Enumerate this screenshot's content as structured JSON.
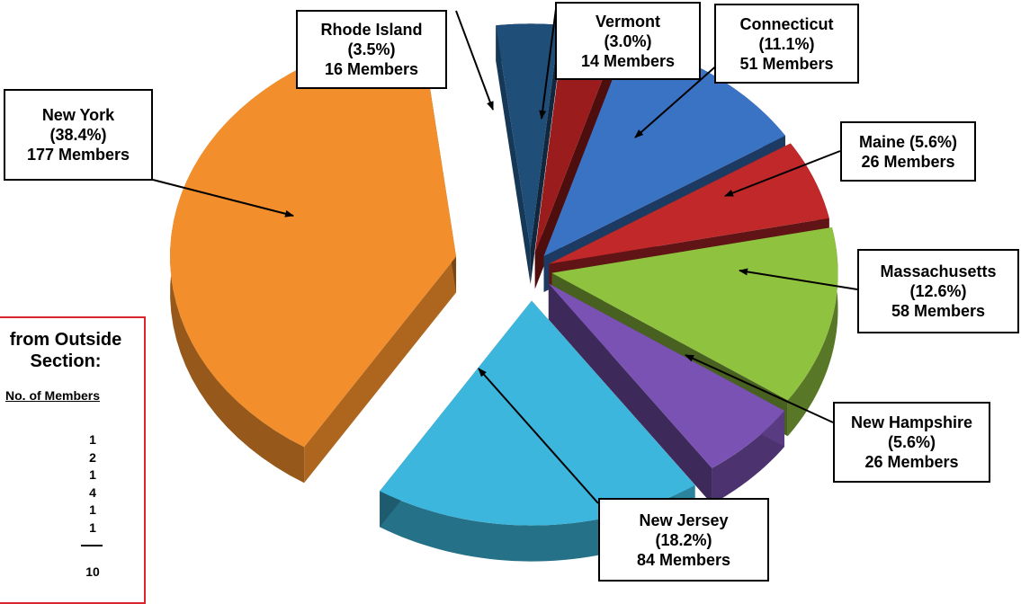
{
  "chart_data": {
    "type": "pie",
    "style": "3d-exploded",
    "slices": [
      {
        "label": "New York",
        "percent": "(38.4%)",
        "members": "177 Members",
        "value": 177,
        "color": "#f28e2b"
      },
      {
        "label": "Rhode Island",
        "percent": "(3.5%)",
        "members": "16 Members",
        "value": 16,
        "color": "#1f4e79"
      },
      {
        "label": "Vermont",
        "percent": "(3.0%)",
        "members": "14 Members",
        "value": 14,
        "color": "#9b1c1c"
      },
      {
        "label": "Connecticut",
        "percent": "(11.1%)",
        "members": "51 Members",
        "value": 51,
        "color": "#3a73c4"
      },
      {
        "label": "Maine (5.6%)",
        "percent": "",
        "members": "26 Members",
        "value": 26,
        "color": "#c0282a"
      },
      {
        "label": "Massachusetts",
        "percent": "(12.6%)",
        "members": "58 Members",
        "value": 58,
        "color": "#8fc23f"
      },
      {
        "label": "New Hampshire",
        "percent": "(5.6%)",
        "members": "26 Members",
        "value": 26,
        "color": "#7a52b3"
      },
      {
        "label": "New Jersey",
        "percent": "(18.2%)",
        "members": "84 Members",
        "value": 84,
        "color": "#3cb6dc"
      }
    ]
  },
  "side_panel": {
    "title_line1": "from Outside",
    "title_line2": "Section:",
    "column_header": "No. of Members",
    "values": [
      "1",
      "2",
      "1",
      "4",
      "1",
      "1"
    ],
    "total": "10"
  }
}
